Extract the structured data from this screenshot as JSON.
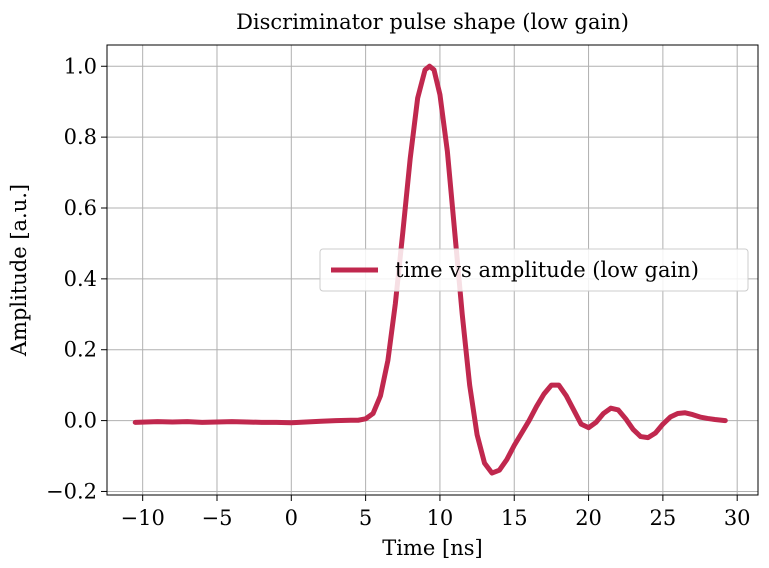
{
  "chart_data": {
    "type": "line",
    "title": "Discriminator pulse shape (low gain)",
    "xlabel": "Time [ns]",
    "ylabel": "Amplitude [a.u.]",
    "xlim": [
      -12.4,
      31.4
    ],
    "ylim": [
      -0.21,
      1.06
    ],
    "xticks": [
      -10,
      -5,
      0,
      5,
      10,
      15,
      20,
      25,
      30
    ],
    "yticks": [
      -0.2,
      0.0,
      0.2,
      0.4,
      0.6,
      0.8,
      1.0
    ],
    "xtick_labels": [
      "−10",
      "−5",
      "0",
      "5",
      "10",
      "15",
      "20",
      "25",
      "30"
    ],
    "ytick_labels": [
      "−0.2",
      "0.0",
      "0.2",
      "0.4",
      "0.6",
      "0.8",
      "1.0"
    ],
    "grid": true,
    "legend_position": "center-right",
    "series": [
      {
        "name": "time vs amplitude (low gain)",
        "color": "#c0284e",
        "x": [
          -10.5,
          -9,
          -8,
          -7,
          -6,
          -5,
          -4,
          -3,
          -2,
          -1,
          0,
          1,
          2,
          3,
          4,
          4.5,
          5,
          5.5,
          6,
          6.5,
          7,
          7.5,
          8,
          8.5,
          9,
          9.3,
          9.6,
          10,
          10.5,
          11,
          11.5,
          12,
          12.5,
          13,
          13.5,
          14,
          14.5,
          15,
          15.5,
          16,
          16.5,
          17,
          17.5,
          18,
          18.5,
          19,
          19.5,
          20,
          20.5,
          21,
          21.5,
          22,
          22.5,
          23,
          23.5,
          24,
          24.5,
          25,
          25.5,
          26,
          26.5,
          27,
          27.5,
          28,
          28.5,
          29.2
        ],
        "y": [
          -0.005,
          -0.003,
          -0.004,
          -0.003,
          -0.005,
          -0.004,
          -0.003,
          -0.004,
          -0.005,
          -0.005,
          -0.006,
          -0.004,
          -0.002,
          0.0,
          0.001,
          0.001,
          0.005,
          0.02,
          0.07,
          0.17,
          0.33,
          0.53,
          0.74,
          0.91,
          0.99,
          1.0,
          0.99,
          0.92,
          0.76,
          0.53,
          0.3,
          0.1,
          -0.04,
          -0.12,
          -0.148,
          -0.14,
          -0.11,
          -0.07,
          -0.035,
          0.0,
          0.04,
          0.075,
          0.1,
          0.1,
          0.07,
          0.03,
          -0.01,
          -0.02,
          -0.005,
          0.02,
          0.035,
          0.03,
          0.005,
          -0.025,
          -0.045,
          -0.048,
          -0.035,
          -0.01,
          0.01,
          0.02,
          0.022,
          0.017,
          0.01,
          0.006,
          0.003,
          0.0
        ]
      }
    ]
  }
}
